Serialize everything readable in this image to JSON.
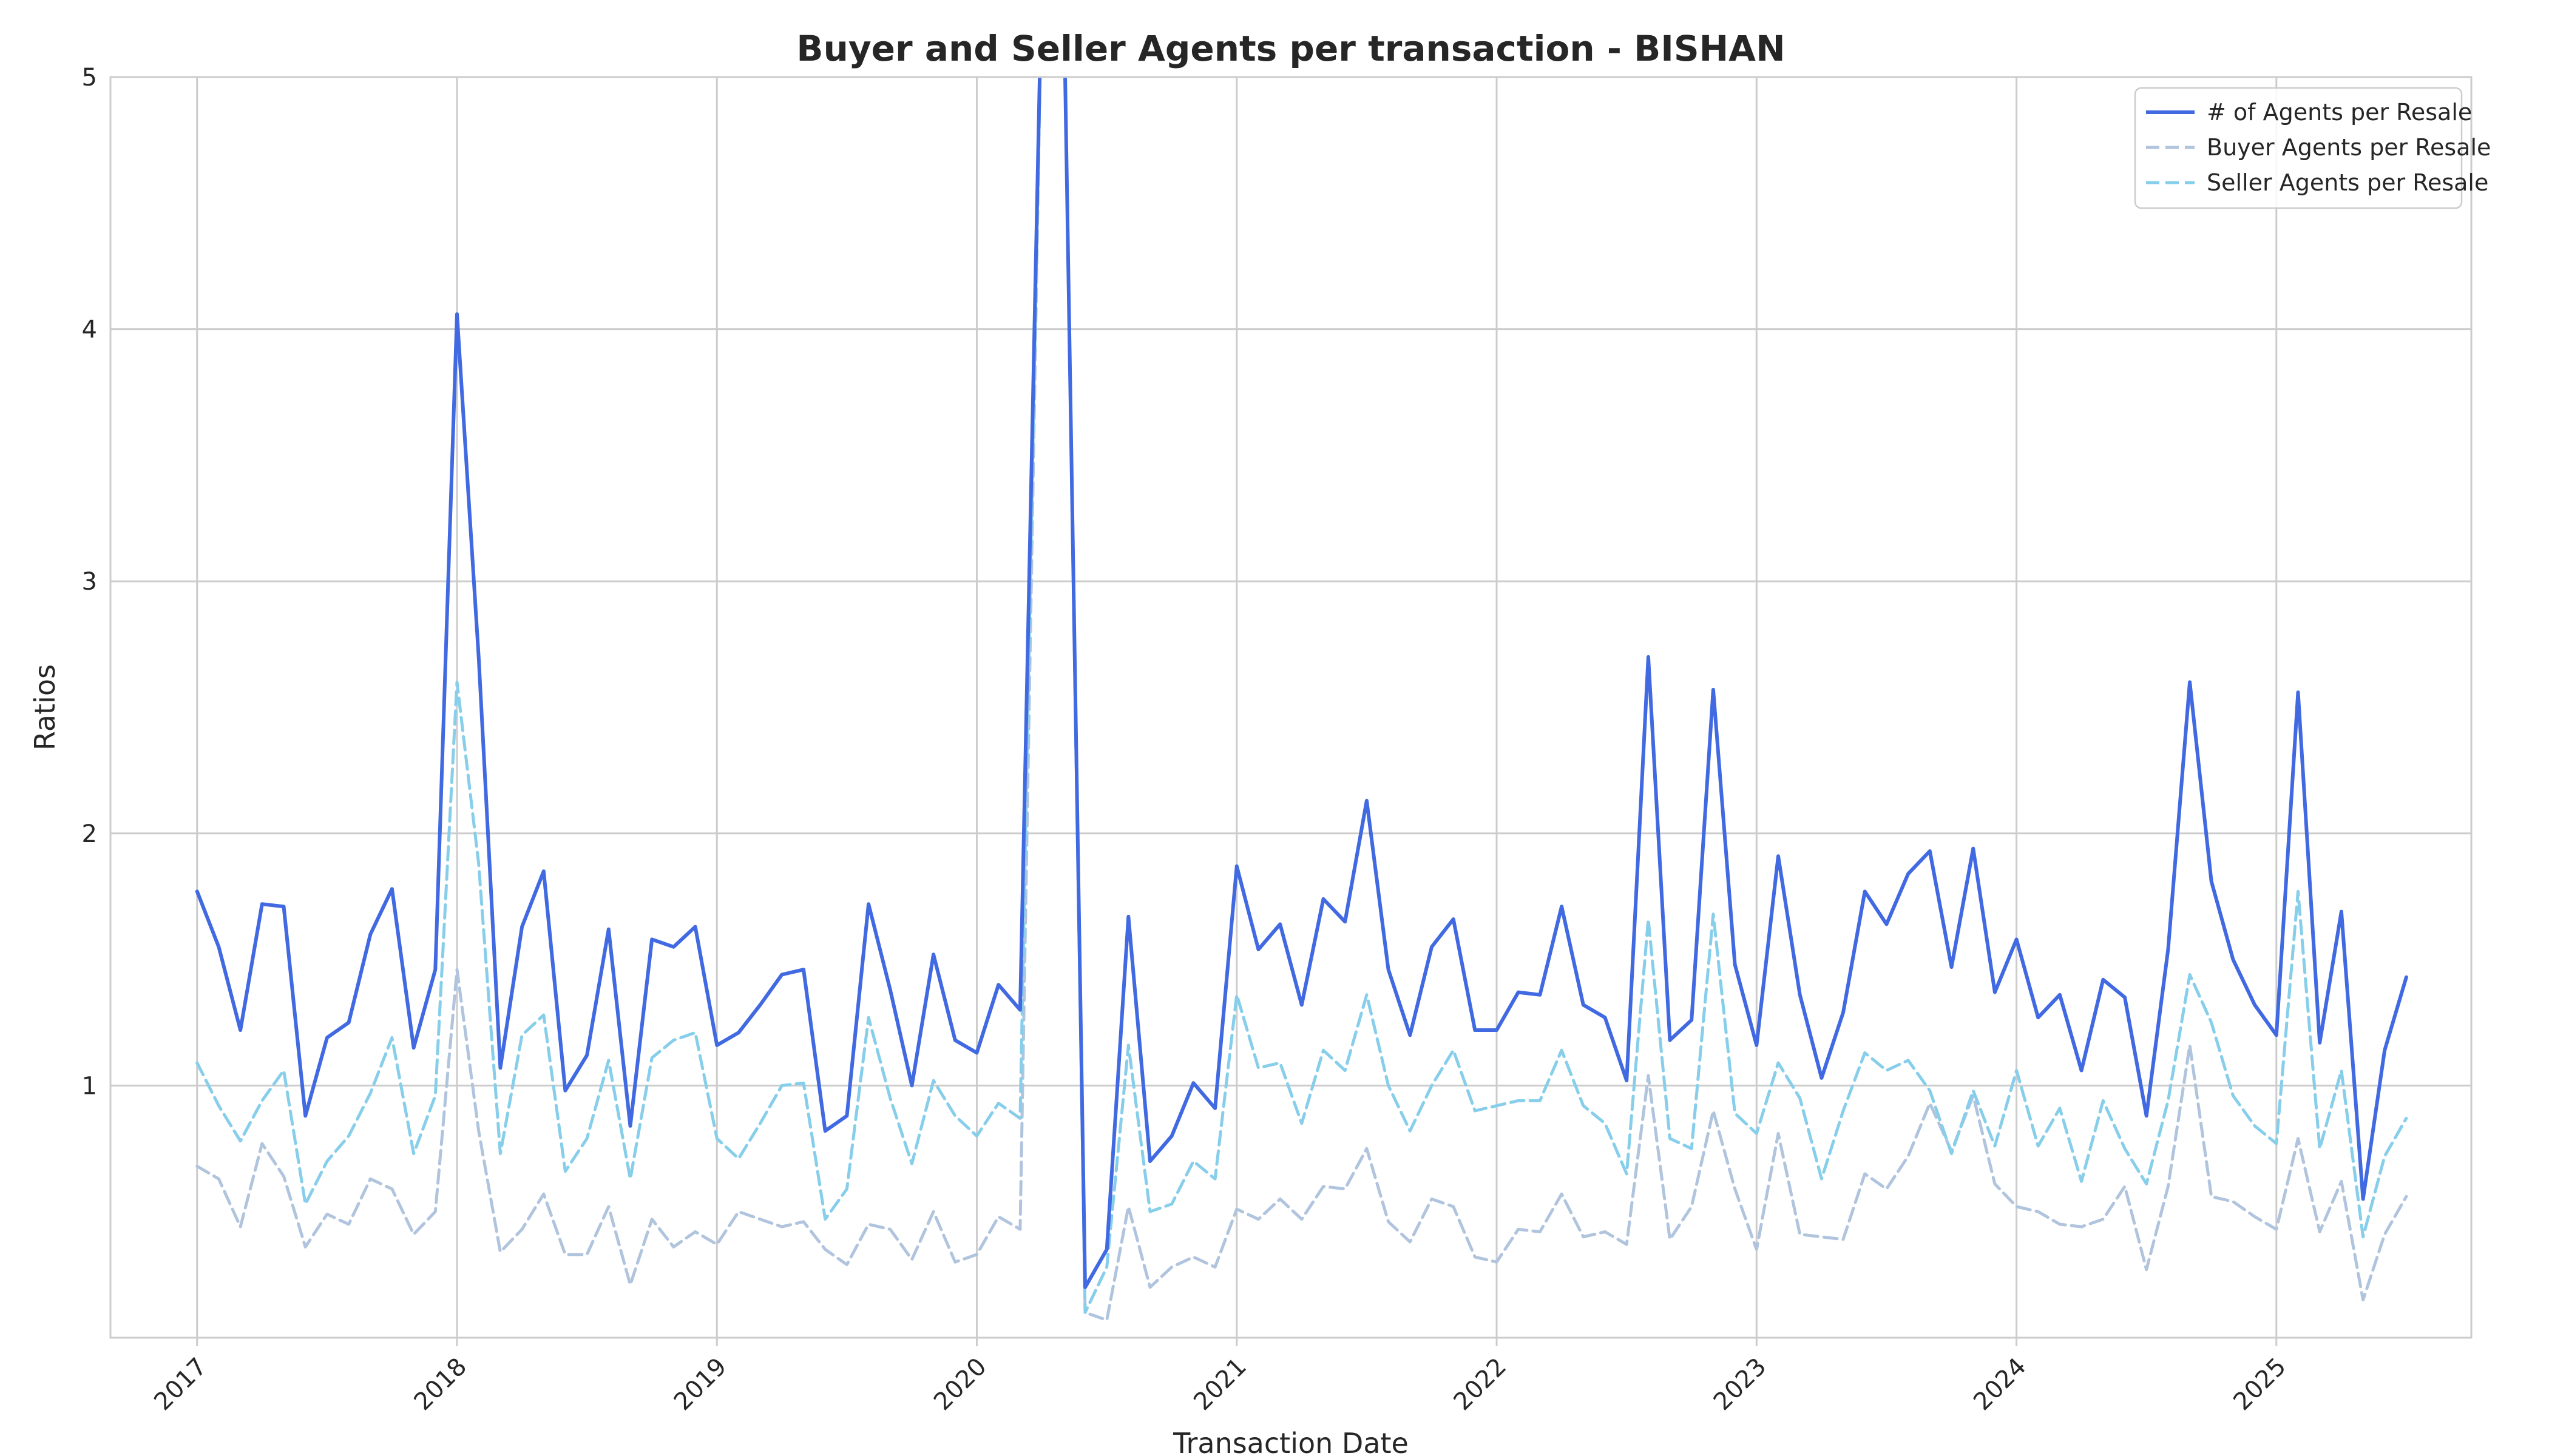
{
  "chart_data": {
    "type": "line",
    "title": "Buyer and Seller Agents per transaction - BISHAN",
    "xlabel": "Transaction Date",
    "ylabel": "Ratios",
    "ylim": [
      0,
      5
    ],
    "y_ticks": [
      1,
      2,
      3,
      4,
      5
    ],
    "x_range": [
      "2016-09-01",
      "2025-10-01"
    ],
    "x_ticks": [
      {
        "label": "2017",
        "date": "2017-01"
      },
      {
        "label": "2018",
        "date": "2018-01"
      },
      {
        "label": "2019",
        "date": "2019-01"
      },
      {
        "label": "2020",
        "date": "2020-01"
      },
      {
        "label": "2021",
        "date": "2021-01"
      },
      {
        "label": "2022",
        "date": "2022-01"
      },
      {
        "label": "2023",
        "date": "2023-01"
      },
      {
        "label": "2024",
        "date": "2024-01"
      },
      {
        "label": "2025",
        "date": "2025-01"
      }
    ],
    "grid": true,
    "legend_position": "top-right",
    "x": [
      "2017-01",
      "2017-02",
      "2017-03",
      "2017-04",
      "2017-05",
      "2017-06",
      "2017-07",
      "2017-08",
      "2017-09",
      "2017-10",
      "2017-11",
      "2017-12",
      "2018-01",
      "2018-02",
      "2018-03",
      "2018-04",
      "2018-05",
      "2018-06",
      "2018-07",
      "2018-08",
      "2018-09",
      "2018-10",
      "2018-11",
      "2018-12",
      "2019-01",
      "2019-02",
      "2019-03",
      "2019-04",
      "2019-05",
      "2019-06",
      "2019-07",
      "2019-08",
      "2019-09",
      "2019-10",
      "2019-11",
      "2019-12",
      "2020-01",
      "2020-02",
      "2020-03",
      "2020-04",
      "2020-05",
      "2020-06",
      "2020-07",
      "2020-08",
      "2020-09",
      "2020-10",
      "2020-11",
      "2020-12",
      "2021-01",
      "2021-02",
      "2021-03",
      "2021-04",
      "2021-05",
      "2021-06",
      "2021-07",
      "2021-08",
      "2021-09",
      "2021-10",
      "2021-11",
      "2021-12",
      "2022-01",
      "2022-02",
      "2022-03",
      "2022-04",
      "2022-05",
      "2022-06",
      "2022-07",
      "2022-08",
      "2022-09",
      "2022-10",
      "2022-11",
      "2022-12",
      "2023-01",
      "2023-02",
      "2023-03",
      "2023-04",
      "2023-05",
      "2023-06",
      "2023-07",
      "2023-08",
      "2023-09",
      "2023-10",
      "2023-11",
      "2023-12",
      "2024-01",
      "2024-02",
      "2024-03",
      "2024-04",
      "2024-05",
      "2024-06",
      "2024-07",
      "2024-08",
      "2024-09",
      "2024-10",
      "2024-11",
      "2024-12",
      "2025-01",
      "2025-02",
      "2025-03",
      "2025-04",
      "2025-05",
      "2025-06",
      "2025-07"
    ],
    "series": [
      {
        "name": "# of Agents per Resale",
        "color": "#4169E1",
        "dash": "solid",
        "values": [
          1.77,
          1.55,
          1.22,
          1.72,
          1.71,
          0.88,
          1.19,
          1.25,
          1.6,
          1.78,
          1.15,
          1.46,
          4.06,
          2.7,
          1.07,
          1.63,
          1.85,
          0.98,
          1.12,
          1.62,
          0.84,
          1.58,
          1.55,
          1.63,
          1.16,
          1.21,
          1.32,
          1.44,
          1.46,
          0.82,
          0.88,
          1.72,
          1.38,
          1.0,
          1.52,
          1.18,
          1.13,
          1.4,
          1.3,
          5.4,
          5.4,
          0.2,
          0.35,
          1.67,
          0.7,
          0.8,
          1.01,
          0.91,
          1.87,
          1.54,
          1.64,
          1.32,
          1.74,
          1.65,
          2.13,
          1.46,
          1.2,
          1.55,
          1.66,
          1.22,
          1.22,
          1.37,
          1.36,
          1.71,
          1.32,
          1.27,
          1.02,
          2.7,
          1.18,
          1.26,
          2.57,
          1.48,
          1.16,
          1.91,
          1.36,
          1.03,
          1.29,
          1.77,
          1.64,
          1.84,
          1.93,
          1.47,
          1.94,
          1.37,
          1.58,
          1.27,
          1.36,
          1.06,
          1.42,
          1.35,
          0.88,
          1.54,
          2.6,
          1.81,
          1.5,
          1.32,
          1.2,
          2.56,
          1.17,
          1.69,
          0.55,
          1.14,
          1.43
        ]
      },
      {
        "name": "Buyer Agents per Resale",
        "color": "#B0C4DE",
        "dash": "dashed",
        "values": [
          0.68,
          0.63,
          0.44,
          0.77,
          0.64,
          0.36,
          0.49,
          0.45,
          0.63,
          0.59,
          0.41,
          0.5,
          1.46,
          0.82,
          0.34,
          0.43,
          0.57,
          0.33,
          0.33,
          0.52,
          0.21,
          0.47,
          0.36,
          0.42,
          0.37,
          0.5,
          0.47,
          0.44,
          0.46,
          0.35,
          0.29,
          0.45,
          0.43,
          0.31,
          0.5,
          0.3,
          0.33,
          0.48,
          0.43,
          5.4,
          5.4,
          0.1,
          0.07,
          0.52,
          0.2,
          0.28,
          0.32,
          0.28,
          0.51,
          0.47,
          0.55,
          0.47,
          0.6,
          0.59,
          0.75,
          0.46,
          0.38,
          0.55,
          0.52,
          0.32,
          0.3,
          0.43,
          0.42,
          0.57,
          0.4,
          0.42,
          0.37,
          1.04,
          0.39,
          0.52,
          0.9,
          0.59,
          0.35,
          0.81,
          0.41,
          0.4,
          0.39,
          0.65,
          0.59,
          0.72,
          0.93,
          0.74,
          0.96,
          0.61,
          0.52,
          0.5,
          0.45,
          0.44,
          0.47,
          0.6,
          0.27,
          0.6,
          1.16,
          0.56,
          0.54,
          0.48,
          0.43,
          0.79,
          0.42,
          0.62,
          0.15,
          0.41,
          0.56
        ]
      },
      {
        "name": "Seller Agents per Resale",
        "color": "#87CEEB",
        "dash": "dashed",
        "values": [
          1.09,
          0.92,
          0.78,
          0.94,
          1.06,
          0.53,
          0.7,
          0.8,
          0.97,
          1.19,
          0.73,
          0.96,
          2.6,
          1.88,
          0.73,
          1.2,
          1.28,
          0.66,
          0.79,
          1.1,
          0.63,
          1.11,
          1.18,
          1.21,
          0.79,
          0.71,
          0.85,
          1.0,
          1.01,
          0.47,
          0.59,
          1.27,
          0.95,
          0.69,
          1.02,
          0.88,
          0.8,
          0.93,
          0.87,
          5.4,
          5.4,
          0.1,
          0.28,
          1.16,
          0.5,
          0.53,
          0.7,
          0.63,
          1.36,
          1.07,
          1.09,
          0.85,
          1.14,
          1.06,
          1.36,
          1.0,
          0.82,
          1.0,
          1.14,
          0.9,
          0.92,
          0.94,
          0.94,
          1.14,
          0.92,
          0.85,
          0.65,
          1.66,
          0.79,
          0.75,
          1.68,
          0.89,
          0.81,
          1.09,
          0.95,
          0.63,
          0.9,
          1.13,
          1.06,
          1.1,
          0.98,
          0.73,
          0.98,
          0.76,
          1.06,
          0.76,
          0.91,
          0.62,
          0.94,
          0.75,
          0.61,
          0.94,
          1.44,
          1.25,
          0.96,
          0.84,
          0.77,
          1.77,
          0.75,
          1.06,
          0.4,
          0.72,
          0.87
        ]
      }
    ]
  }
}
